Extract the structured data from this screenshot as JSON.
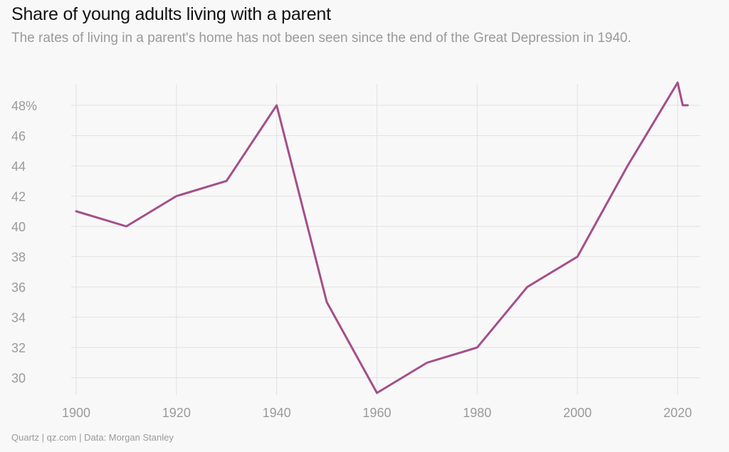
{
  "chart_data": {
    "type": "line",
    "title": "Share of young adults living with a parent",
    "subtitle": "The rates of living in a parent's home has not been seen since the end of the Great Depression in 1940.",
    "xlabel": "",
    "ylabel": "",
    "x": [
      1900,
      1910,
      1920,
      1930,
      1940,
      1950,
      1960,
      1970,
      1980,
      1990,
      2000,
      2010,
      2020,
      2021,
      2022
    ],
    "series": [
      {
        "values": [
          41,
          40,
          42,
          43,
          48,
          35,
          29,
          31,
          32,
          36,
          38,
          44,
          49.5,
          48,
          48
        ]
      }
    ],
    "xlim": [
      1900,
      2022
    ],
    "ylim": [
      29,
      49.5
    ],
    "xticks": [
      1900,
      1920,
      1940,
      1960,
      1980,
      2000,
      2020
    ],
    "xtick_labels": [
      "1900",
      "1920",
      "1940",
      "1960",
      "1980",
      "2000",
      "2020"
    ],
    "yticks": [
      30,
      32,
      34,
      36,
      38,
      40,
      42,
      44,
      46,
      48
    ],
    "ytick_labels": [
      "30",
      "32",
      "34",
      "36",
      "38",
      "40",
      "42",
      "44",
      "46",
      "48%"
    ],
    "grid": true,
    "colors": {
      "series": "#a44e8a",
      "grid": "#e1e1e1",
      "tick": "#9a9a9a"
    }
  },
  "footer": "Quartz | qz.com | Data: Morgan Stanley"
}
